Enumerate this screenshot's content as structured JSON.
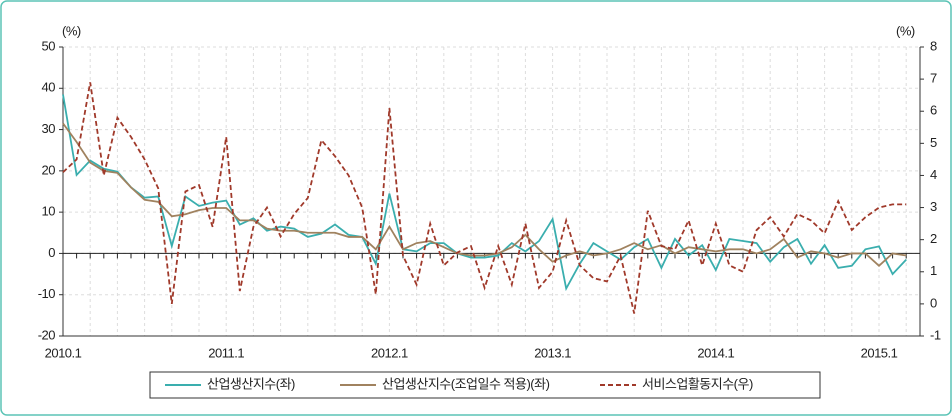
{
  "chart_data": {
    "type": "line",
    "y_unit_label": "(%)",
    "y2_unit_label": "(%)",
    "categories": [
      "2010.1",
      null,
      null,
      null,
      null,
      null,
      null,
      null,
      null,
      null,
      null,
      null,
      "2011.1",
      null,
      null,
      null,
      null,
      null,
      null,
      null,
      null,
      null,
      null,
      null,
      "2012.1",
      null,
      null,
      null,
      null,
      null,
      null,
      null,
      null,
      null,
      null,
      null,
      "2013.1",
      null,
      null,
      null,
      null,
      null,
      null,
      null,
      null,
      null,
      null,
      null,
      "2014.1",
      null,
      null,
      null,
      null,
      null,
      null,
      null,
      null,
      null,
      null,
      null,
      "2015.1",
      null,
      null
    ],
    "series": [
      {
        "name": "산업생산지수(좌)",
        "color": "#3aaeae",
        "style": "solid",
        "axis": "y",
        "values": [
          38.5,
          19,
          22.5,
          20.5,
          19.8,
          16,
          13.5,
          13.8,
          1.8,
          13.8,
          11.5,
          12.3,
          12.8,
          7,
          8.5,
          5.5,
          6.5,
          6,
          4,
          4.8,
          7,
          4.5,
          4,
          -2.5,
          14.5,
          1,
          0.5,
          2.5,
          2.5,
          0,
          -1,
          -1,
          -0.5,
          2.5,
          0.5,
          3,
          8.3,
          -8.5,
          -2.5,
          2.5,
          0.5,
          -1.5,
          1.5,
          3.5,
          -3.5,
          3.5,
          -0.5,
          2,
          -4,
          3.5,
          3,
          2.5,
          -2,
          1.5,
          3.5,
          -2.5,
          2,
          -3.5,
          -3,
          1,
          1.7,
          -5,
          -1.5
        ]
      },
      {
        "name": "산업생산지수(조업일수 적용)(좌)",
        "color": "#a0825f",
        "style": "solid",
        "axis": "y",
        "values": [
          31.5,
          27,
          22,
          20,
          19.5,
          16,
          13,
          12.5,
          9,
          9.5,
          10.5,
          11,
          11,
          8,
          8,
          6,
          5.5,
          5.5,
          5,
          5,
          5,
          4,
          4,
          1,
          6.5,
          1,
          2.5,
          3,
          1.5,
          0,
          -0.5,
          -0.5,
          0,
          1.5,
          4.5,
          1,
          -2,
          -0.5,
          0.5,
          -0.5,
          0,
          1,
          2.5,
          1,
          2,
          0,
          1.5,
          1,
          0.5,
          1,
          1,
          0,
          1,
          3.5,
          -1,
          0.5,
          0,
          -1,
          0,
          0,
          -3,
          0,
          -0.5
        ]
      },
      {
        "name": "서비스업활동지수(우)",
        "color": "#a0392a",
        "style": "dashed",
        "axis": "y2",
        "values": [
          4.1,
          4.5,
          6.9,
          4.0,
          5.8,
          5.2,
          4.5,
          3.6,
          0,
          3.5,
          3.7,
          2.4,
          5.2,
          0.4,
          2.4,
          3.0,
          2.1,
          2.8,
          3.3,
          5.1,
          4.6,
          4.0,
          3.0,
          0.3,
          6.1,
          1.5,
          0.6,
          2.5,
          1.2,
          1.6,
          1.8,
          0.5,
          1.8,
          0.6,
          2.5,
          0.5,
          1.0,
          2.6,
          1.2,
          0.8,
          0.7,
          1.5,
          -0.3,
          2.9,
          1.8,
          1.7,
          2.6,
          1.2,
          2.5,
          1.2,
          1.0,
          2.3,
          2.7,
          2.1,
          2.8,
          2.6,
          2.2,
          3.2,
          2.3,
          2.7,
          3.0,
          3.1,
          3.1
        ]
      }
    ],
    "ylim": [
      -20,
      50
    ],
    "yticks": [
      -20,
      -10,
      0,
      10,
      20,
      30,
      40,
      50
    ],
    "y2lim": [
      -1,
      8
    ],
    "y2ticks": [
      -1,
      0,
      1,
      2,
      3,
      4,
      5,
      6,
      7,
      8
    ],
    "grid": true
  }
}
